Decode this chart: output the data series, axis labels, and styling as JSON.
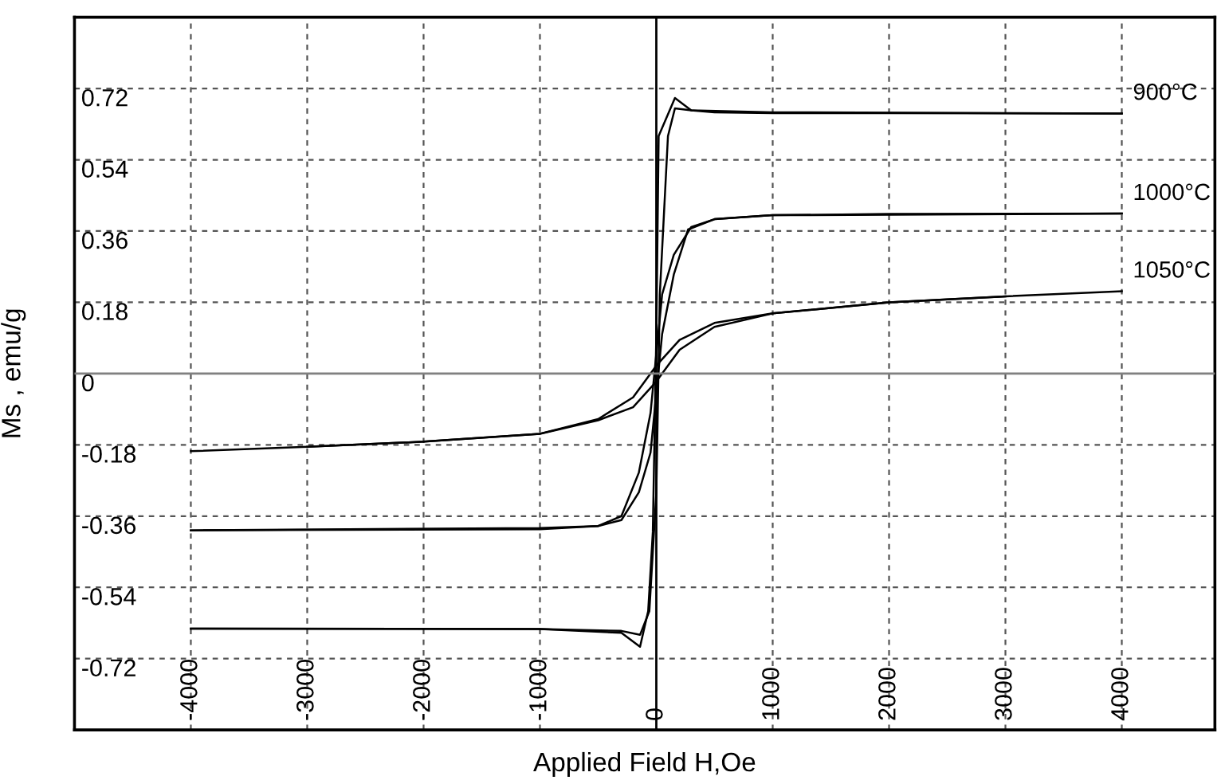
{
  "chart_data": {
    "type": "line",
    "xlabel": "Applied Field H,Oe",
    "ylabel": "Ms , emu/g",
    "xlim": [
      -5000,
      4800
    ],
    "xticks": [
      -4000,
      -3000,
      -2000,
      -1000,
      0,
      1000,
      2000,
      3000,
      4000
    ],
    "ylim": [
      -0.9,
      0.9
    ],
    "yticks": [
      -0.72,
      -0.54,
      -0.36,
      -0.18,
      0,
      0.18,
      0.36,
      0.54,
      0.72
    ],
    "grid": true,
    "legend": false,
    "marker": "none",
    "line_style": "solid",
    "ref_lines": [
      {
        "axis": "x",
        "value": 0,
        "color": "#000000"
      },
      {
        "axis": "y",
        "value": 0,
        "color": "#808080"
      }
    ],
    "series": [
      {
        "name": "900°C",
        "color": "#000000",
        "x": [
          -4000,
          -1000,
          -300,
          -140,
          -70,
          -30,
          0,
          20,
          160,
          300,
          500,
          1000,
          2000,
          4000
        ],
        "values": [
          -0.644,
          -0.645,
          -0.655,
          -0.69,
          -0.6,
          -0.4,
          0.1,
          0.6,
          0.696,
          0.665,
          0.66,
          0.658,
          0.658,
          0.657
        ]
      },
      {
        "color": "#000000",
        "x": [
          -4000,
          -1000,
          -300,
          -140,
          -60,
          0,
          30,
          100,
          160,
          300,
          1000,
          4000
        ],
        "values": [
          -0.644,
          -0.645,
          -0.65,
          -0.66,
          -0.6,
          -0.3,
          0.2,
          0.6,
          0.67,
          0.665,
          0.66,
          0.657
        ]
      },
      {
        "name": "1000°C",
        "color": "#000000",
        "x": [
          -4000,
          -1000,
          -500,
          -300,
          -150,
          -50,
          0,
          50,
          150,
          300,
          500,
          1000,
          2000,
          4000
        ],
        "values": [
          -0.396,
          -0.39,
          -0.385,
          -0.36,
          -0.25,
          -0.1,
          0.05,
          0.2,
          0.3,
          0.37,
          0.39,
          0.4,
          0.403,
          0.404
        ]
      },
      {
        "color": "#000000",
        "x": [
          -4000,
          -1000,
          -500,
          -300,
          -150,
          -50,
          0,
          50,
          150,
          273,
          500,
          1000,
          4000
        ],
        "values": [
          -0.396,
          -0.393,
          -0.385,
          -0.37,
          -0.3,
          -0.2,
          -0.05,
          0.1,
          0.25,
          0.364,
          0.39,
          0.4,
          0.404
        ]
      },
      {
        "name": "1050°C",
        "color": "#000000",
        "x": [
          -4000,
          -3000,
          -2000,
          -1000,
          -500,
          -200,
          0,
          200,
          500,
          1000,
          2000,
          3000,
          4000
        ],
        "values": [
          -0.196,
          -0.185,
          -0.172,
          -0.152,
          -0.115,
          -0.06,
          0.02,
          0.085,
          0.128,
          0.152,
          0.18,
          0.195,
          0.208
        ]
      },
      {
        "color": "#000000",
        "x": [
          -3000,
          -2000,
          -1000,
          -500,
          -200,
          0,
          200,
          500,
          1000,
          2000,
          3000
        ],
        "values": [
          -0.185,
          -0.172,
          -0.152,
          -0.118,
          -0.085,
          -0.02,
          0.06,
          0.118,
          0.152,
          0.18,
          0.195
        ]
      }
    ]
  }
}
